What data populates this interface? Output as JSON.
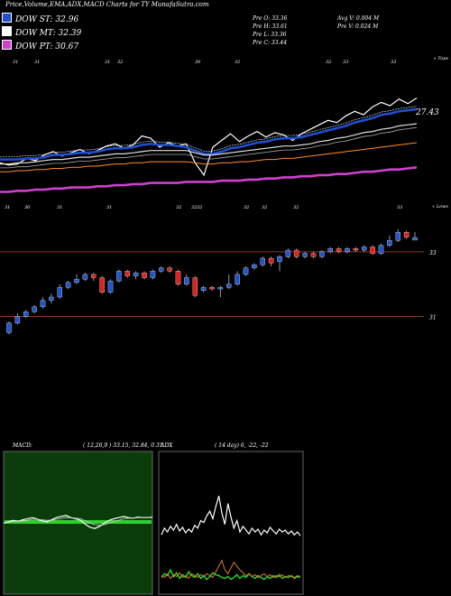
{
  "header": {
    "title": "Price,Volume,EMA,ADX,MACD Charts for TY MunafaSutra.com"
  },
  "legend": [
    {
      "label": "DOW ST: 32.96",
      "color": "#1f4fd1"
    },
    {
      "label": "DOW MT: 32.39",
      "color": "#ffffff"
    },
    {
      "label": "DOW PT: 30.67",
      "color": "#d040d0"
    }
  ],
  "ohlc": {
    "open": "Pre   O: 33.36",
    "high": "Pre   H: 33.61",
    "low": "Pre   L: 33.36",
    "close": "Pre   C: 33.44",
    "avg_volume": "Avg V: 0.004   M",
    "prev_volume": "Pre   V: 0.024   M"
  },
  "colors": {
    "up": "#2255cc",
    "down": "#e02020",
    "ema_fast": "#1f4fd1",
    "ema_mid": "#ffffff",
    "ema_slow": "#ff8c30",
    "ema_long": "#d040d0",
    "macd_bg": "#0b3d0b",
    "adx_line": "#ffffff"
  },
  "chart_data": [
    {
      "type": "line",
      "name": "price-ema-overview",
      "top_label": "« Tops",
      "low_label": "« Lows",
      "last_value_label": "27.43",
      "top_ticks": [
        "31",
        "31",
        "31",
        "32",
        "30",
        "32",
        "32",
        "33",
        "33"
      ],
      "low_ticks": [
        "31",
        "30",
        "31",
        "31",
        "32",
        "32",
        "32",
        "32",
        "32",
        "32",
        "33"
      ],
      "series": [
        {
          "name": "close",
          "values": [
            33.2,
            33.0,
            33.1,
            33.6,
            33.4,
            33.9,
            34.2,
            33.8,
            34.1,
            34.4,
            34.0,
            34.3,
            34.7,
            34.9,
            34.5,
            34.8,
            35.6,
            35.4,
            34.6,
            35.0,
            34.7,
            34.9,
            33.2,
            32.1,
            34.6,
            35.2,
            35.8,
            35.1,
            35.6,
            36.0,
            35.5,
            35.9,
            35.7,
            35.2,
            35.8,
            36.2,
            36.6,
            37.0,
            36.8,
            37.4,
            37.8,
            37.5,
            38.2,
            38.6,
            38.3,
            38.9,
            38.5,
            39.0
          ]
        },
        {
          "name": "ema-fast",
          "values": [
            33.5,
            33.5,
            33.5,
            33.6,
            33.6,
            33.7,
            33.9,
            33.9,
            34.0,
            34.1,
            34.1,
            34.2,
            34.4,
            34.5,
            34.5,
            34.6,
            34.8,
            34.9,
            34.8,
            34.8,
            34.7,
            34.6,
            34.3,
            34.0,
            34.0,
            34.2,
            34.5,
            34.6,
            34.8,
            35.0,
            35.1,
            35.3,
            35.4,
            35.4,
            35.5,
            35.7,
            35.9,
            36.1,
            36.3,
            36.5,
            36.8,
            37.0,
            37.2,
            37.5,
            37.6,
            37.8,
            37.9,
            38.0
          ]
        },
        {
          "name": "ema-mid",
          "values": [
            33.1,
            33.1,
            33.2,
            33.2,
            33.3,
            33.4,
            33.5,
            33.5,
            33.6,
            33.7,
            33.7,
            33.8,
            33.9,
            34.0,
            34.0,
            34.1,
            34.2,
            34.3,
            34.3,
            34.3,
            34.3,
            34.3,
            34.1,
            33.9,
            33.9,
            34.0,
            34.1,
            34.2,
            34.3,
            34.4,
            34.5,
            34.6,
            34.7,
            34.7,
            34.8,
            34.9,
            35.1,
            35.2,
            35.4,
            35.5,
            35.7,
            35.9,
            36.0,
            36.2,
            36.3,
            36.5,
            36.6,
            36.7
          ]
        },
        {
          "name": "ema-slow",
          "values": [
            32.4,
            32.4,
            32.5,
            32.5,
            32.6,
            32.6,
            32.7,
            32.7,
            32.8,
            32.8,
            32.9,
            32.9,
            33.0,
            33.1,
            33.1,
            33.2,
            33.2,
            33.3,
            33.3,
            33.3,
            33.3,
            33.3,
            33.2,
            33.1,
            33.1,
            33.2,
            33.2,
            33.3,
            33.3,
            33.4,
            33.5,
            33.5,
            33.6,
            33.6,
            33.7,
            33.8,
            33.9,
            34.0,
            34.1,
            34.2,
            34.3,
            34.4,
            34.5,
            34.6,
            34.7,
            34.8,
            34.9,
            35.0
          ]
        },
        {
          "name": "ema-long",
          "values": [
            30.6,
            30.6,
            30.7,
            30.7,
            30.8,
            30.8,
            30.9,
            30.9,
            31.0,
            31.0,
            31.0,
            31.1,
            31.1,
            31.2,
            31.2,
            31.3,
            31.3,
            31.4,
            31.4,
            31.4,
            31.4,
            31.5,
            31.5,
            31.5,
            31.5,
            31.6,
            31.6,
            31.6,
            31.7,
            31.7,
            31.8,
            31.8,
            31.9,
            31.9,
            32.0,
            32.0,
            32.1,
            32.1,
            32.2,
            32.2,
            32.3,
            32.4,
            32.4,
            32.5,
            32.6,
            32.6,
            32.7,
            32.8
          ]
        }
      ]
    },
    {
      "type": "candlestick",
      "name": "price-candles",
      "ylim": [
        30.4,
        34.0
      ],
      "y_ticks": [
        "33",
        "31"
      ],
      "h_lines": [
        33.0,
        31.0
      ],
      "candles": [
        {
          "o": 30.5,
          "c": 30.8,
          "h": 30.85,
          "l": 30.45
        },
        {
          "o": 30.8,
          "c": 31.0,
          "h": 31.1,
          "l": 30.75
        },
        {
          "o": 31.0,
          "c": 31.15,
          "h": 31.2,
          "l": 30.95
        },
        {
          "o": 31.15,
          "c": 31.3,
          "h": 31.35,
          "l": 31.1
        },
        {
          "o": 31.3,
          "c": 31.5,
          "h": 31.6,
          "l": 31.25
        },
        {
          "o": 31.5,
          "c": 31.6,
          "h": 31.7,
          "l": 31.4
        },
        {
          "o": 31.6,
          "c": 31.9,
          "h": 32.0,
          "l": 31.55
        },
        {
          "o": 31.9,
          "c": 32.05,
          "h": 32.1,
          "l": 31.85
        },
        {
          "o": 32.05,
          "c": 32.15,
          "h": 32.3,
          "l": 32.0
        },
        {
          "o": 32.15,
          "c": 32.3,
          "h": 32.35,
          "l": 32.1
        },
        {
          "o": 32.3,
          "c": 32.2,
          "h": 32.35,
          "l": 32.1
        },
        {
          "o": 32.2,
          "c": 31.75,
          "h": 32.25,
          "l": 31.7
        },
        {
          "o": 31.75,
          "c": 32.1,
          "h": 32.15,
          "l": 31.7
        },
        {
          "o": 32.1,
          "c": 32.4,
          "h": 32.45,
          "l": 32.05
        },
        {
          "o": 32.4,
          "c": 32.25,
          "h": 32.45,
          "l": 32.2
        },
        {
          "o": 32.25,
          "c": 32.35,
          "h": 32.4,
          "l": 32.15
        },
        {
          "o": 32.35,
          "c": 32.2,
          "h": 32.4,
          "l": 32.15
        },
        {
          "o": 32.2,
          "c": 32.4,
          "h": 32.45,
          "l": 32.15
        },
        {
          "o": 32.4,
          "c": 32.5,
          "h": 32.55,
          "l": 32.35
        },
        {
          "o": 32.5,
          "c": 32.4,
          "h": 32.55,
          "l": 32.35
        },
        {
          "o": 32.4,
          "c": 32.0,
          "h": 32.45,
          "l": 31.95
        },
        {
          "o": 32.0,
          "c": 32.2,
          "h": 32.3,
          "l": 31.95
        },
        {
          "o": 32.2,
          "c": 31.65,
          "h": 32.25,
          "l": 31.6
        },
        {
          "o": 31.8,
          "c": 31.9,
          "h": 31.95,
          "l": 31.75
        },
        {
          "o": 31.9,
          "c": 31.85,
          "h": 31.95,
          "l": 31.8
        },
        {
          "o": 31.85,
          "c": 31.9,
          "h": 31.95,
          "l": 31.6
        },
        {
          "o": 31.9,
          "c": 32.0,
          "h": 32.3,
          "l": 31.85
        },
        {
          "o": 32.0,
          "c": 32.3,
          "h": 32.4,
          "l": 31.95
        },
        {
          "o": 32.3,
          "c": 32.5,
          "h": 32.55,
          "l": 32.25
        },
        {
          "o": 32.5,
          "c": 32.6,
          "h": 32.65,
          "l": 32.45
        },
        {
          "o": 32.6,
          "c": 32.8,
          "h": 32.85,
          "l": 32.55
        },
        {
          "o": 32.8,
          "c": 32.65,
          "h": 32.85,
          "l": 32.55
        },
        {
          "o": 32.7,
          "c": 32.85,
          "h": 32.9,
          "l": 32.4
        },
        {
          "o": 32.85,
          "c": 33.05,
          "h": 33.1,
          "l": 32.8
        },
        {
          "o": 33.05,
          "c": 32.85,
          "h": 33.1,
          "l": 32.8
        },
        {
          "o": 32.85,
          "c": 32.95,
          "h": 33.0,
          "l": 32.8
        },
        {
          "o": 32.95,
          "c": 32.85,
          "h": 33.0,
          "l": 32.8
        },
        {
          "o": 32.85,
          "c": 33.0,
          "h": 33.05,
          "l": 32.8
        },
        {
          "o": 33.0,
          "c": 33.1,
          "h": 33.15,
          "l": 32.95
        },
        {
          "o": 33.1,
          "c": 33.0,
          "h": 33.15,
          "l": 32.95
        },
        {
          "o": 33.0,
          "c": 33.1,
          "h": 33.15,
          "l": 32.95
        },
        {
          "o": 33.1,
          "c": 33.05,
          "h": 33.15,
          "l": 33.0
        },
        {
          "o": 33.05,
          "c": 33.15,
          "h": 33.2,
          "l": 33.0
        },
        {
          "o": 33.15,
          "c": 32.95,
          "h": 33.2,
          "l": 32.9
        },
        {
          "o": 32.95,
          "c": 33.2,
          "h": 33.25,
          "l": 32.9
        },
        {
          "o": 33.2,
          "c": 33.35,
          "h": 33.5,
          "l": 33.15
        },
        {
          "o": 33.35,
          "c": 33.6,
          "h": 33.7,
          "l": 33.3
        },
        {
          "o": 33.6,
          "c": 33.45,
          "h": 33.65,
          "l": 33.4
        },
        {
          "o": 33.36,
          "c": 33.44,
          "h": 33.61,
          "l": 33.36
        }
      ]
    },
    {
      "type": "line",
      "name": "macd",
      "label": "MACD:",
      "params": "( 12,26,9 ) 33.15,  32.84,  0.31",
      "series": [
        {
          "name": "macd",
          "values": [
            0.2,
            0.22,
            0.25,
            0.23,
            0.26,
            0.28,
            0.3,
            0.27,
            0.24,
            0.22,
            0.26,
            0.3,
            0.32,
            0.34,
            0.3,
            0.28,
            0.25,
            0.18,
            0.12,
            0.1,
            0.14,
            0.2,
            0.25,
            0.28,
            0.3,
            0.32,
            0.3,
            0.29,
            0.31,
            0.3,
            0.3,
            0.31
          ]
        },
        {
          "name": "signal",
          "values": [
            0.21,
            0.21,
            0.23,
            0.23,
            0.24,
            0.25,
            0.27,
            0.27,
            0.26,
            0.25,
            0.25,
            0.27,
            0.28,
            0.3,
            0.3,
            0.29,
            0.28,
            0.24,
            0.2,
            0.17,
            0.16,
            0.17,
            0.2,
            0.23,
            0.25,
            0.28,
            0.29,
            0.29,
            0.3,
            0.3,
            0.3,
            0.3
          ]
        }
      ]
    },
    {
      "type": "line",
      "name": "adx",
      "label": "ADX",
      "params": "( 14  day) 6,  -22,  -22",
      "series": [
        {
          "name": "adx",
          "values": [
            55,
            62,
            58,
            64,
            60,
            66,
            59,
            63,
            57,
            61,
            58,
            65,
            62,
            70,
            68,
            75,
            80,
            72,
            85,
            96,
            78,
            66,
            88,
            74,
            62,
            70,
            58,
            64,
            60,
            56,
            62,
            58,
            61,
            55,
            60,
            57,
            63,
            59,
            56,
            61,
            58,
            60,
            56,
            59,
            55,
            58,
            54
          ]
        },
        {
          "name": "plus-di",
          "values": [
            10,
            14,
            12,
            18,
            11,
            15,
            9,
            13,
            10,
            16,
            12,
            10,
            14,
            9,
            12,
            8,
            11,
            15,
            13,
            12,
            10,
            9,
            11,
            8,
            10,
            13,
            9,
            12,
            10,
            14,
            11,
            9,
            12,
            10,
            8,
            11,
            9,
            12,
            10,
            13,
            9,
            11,
            10,
            12,
            9,
            11,
            10
          ]
        },
        {
          "name": "minus-di",
          "values": [
            12,
            10,
            14,
            9,
            13,
            11,
            15,
            10,
            12,
            9,
            14,
            12,
            10,
            13,
            11,
            14,
            12,
            10,
            16,
            22,
            28,
            18,
            14,
            20,
            26,
            22,
            18,
            15,
            12,
            14,
            11,
            13,
            10,
            12,
            14,
            11,
            13,
            10,
            12,
            11,
            13,
            10,
            12,
            11,
            10,
            12,
            11
          ]
        }
      ]
    }
  ]
}
